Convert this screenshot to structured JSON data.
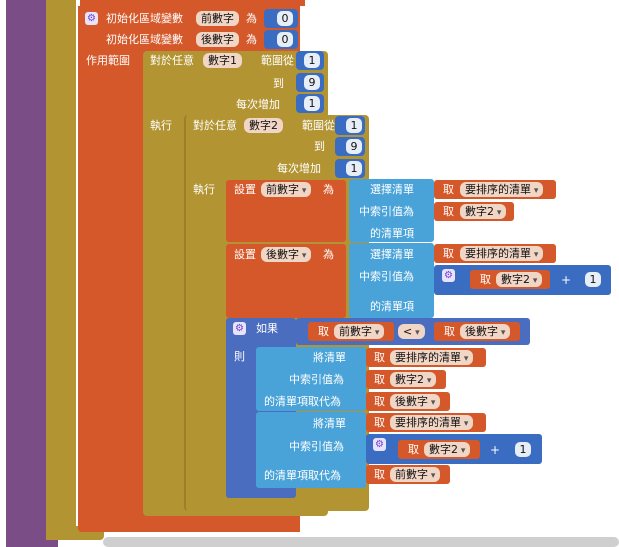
{
  "colors": {
    "purple_bg": "#7a4d86",
    "gold": "#b39433",
    "orange": "#d4582a",
    "blue_value": "#3a6cc2",
    "cyan_list": "#4aa3d8",
    "math_blue": "#3a6cc2",
    "logic_blue": "#4b6dbf",
    "pill": "#f1d6c6"
  },
  "init_locals": [
    {
      "label": "初始化區域變數",
      "name": "前數字",
      "suffix": "為",
      "value": "0"
    },
    {
      "label": "初始化區域變數",
      "name": "後數字",
      "suffix": "為",
      "value": "0"
    }
  ],
  "scope_label": "作用範圍",
  "outer_loop": {
    "label": "對於任意",
    "var": "數字1",
    "from_label": "範圍從",
    "from": "1",
    "to_label": "到",
    "to": "9",
    "step_label": "每次增加",
    "step": "1"
  },
  "do_label": "執行",
  "inner_loop": {
    "label": "對於任意",
    "var": "數字2",
    "from_label": "範圍從",
    "from": "1",
    "to_label": "到",
    "to": "9",
    "step_label": "每次增加",
    "step": "1"
  },
  "set_blocks": [
    {
      "label": "設置",
      "var": "前數字",
      "as": "為",
      "select_label": "選擇清單",
      "get": "取",
      "list": "要排序的清單",
      "index_label": "中索引值為",
      "index_get": "取",
      "index_var": "數字2",
      "tail": "的清單項"
    },
    {
      "label": "設置",
      "var": "後數字",
      "as": "為",
      "select_label": "選擇清單",
      "get": "取",
      "list": "要排序的清單",
      "index_label": "中索引值為",
      "index_get": "取",
      "index_var": "數字2",
      "plus": "+",
      "plus_value": "1",
      "tail": "的清單項"
    }
  ],
  "if_block": {
    "label": "如果",
    "get_left": "取",
    "left": "前數字",
    "op": "<",
    "get_right": "取",
    "right": "後數字",
    "then": "則"
  },
  "replace_blocks": [
    {
      "label": "將清單",
      "get": "取",
      "list": "要排序的清單",
      "index_label": "中索引值為",
      "index_get": "取",
      "index_var": "數字2",
      "replace_label": "的清單項取代為",
      "value_get": "取",
      "value": "後數字"
    },
    {
      "label": "將清單",
      "get": "取",
      "list": "要排序的清單",
      "index_label": "中索引值為",
      "index_get": "取",
      "index_var": "數字2",
      "plus": "+",
      "plus_value": "1",
      "replace_label": "的清單項取代為",
      "value_get": "取",
      "value": "前數字"
    }
  ]
}
